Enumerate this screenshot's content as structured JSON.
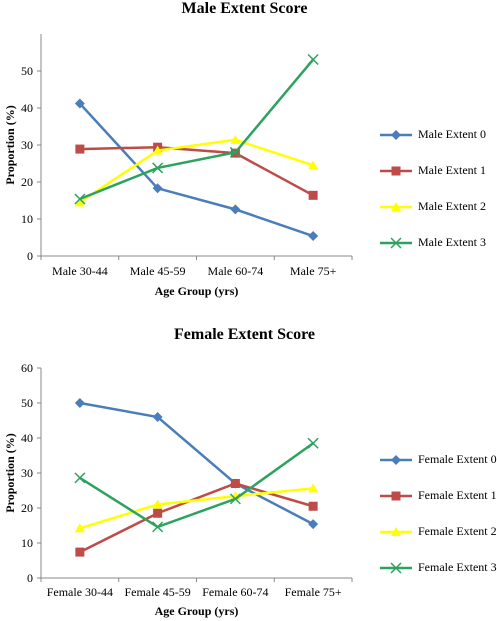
{
  "chart_data": [
    {
      "type": "line",
      "title": "Male Extent Score",
      "xlabel": "Age Group (yrs)",
      "ylabel": "Proportion (%)",
      "categories": [
        "Male 30-44",
        "Male 45-59",
        "Male 60-74",
        "Male 75+"
      ],
      "ylim": [
        0,
        60
      ],
      "yticks": [
        0,
        10,
        20,
        30,
        40,
        50
      ],
      "grid": false,
      "legend": "right",
      "series": [
        {
          "name": "Male Extent 0",
          "values": [
            41.2,
            18.3,
            12.6,
            5.4
          ],
          "color": "#4a7ebb",
          "marker": "diamond"
        },
        {
          "name": "Male Extent 1",
          "values": [
            28.9,
            29.4,
            27.8,
            16.4
          ],
          "color": "#be4b48",
          "marker": "square"
        },
        {
          "name": "Male Extent 2",
          "values": [
            14.5,
            28.5,
            31.4,
            24.5
          ],
          "color": "#ffff00",
          "marker": "triangle"
        },
        {
          "name": "Male Extent 3",
          "values": [
            15.4,
            23.8,
            28.0,
            53.1
          ],
          "color": "#2ca25f",
          "marker": "x"
        }
      ]
    },
    {
      "type": "line",
      "title": "Female Extent Score",
      "xlabel": "Age Group (yrs)",
      "ylabel": "Proportion (%)",
      "categories": [
        "Female 30-44",
        "Female 45-59",
        "Female 60-74",
        "Female 75+"
      ],
      "ylim": [
        0,
        60
      ],
      "yticks": [
        0,
        10,
        20,
        30,
        40,
        50,
        60
      ],
      "grid": false,
      "legend": "right",
      "series": [
        {
          "name": "Female Extent 0",
          "values": [
            50.0,
            46.0,
            27.0,
            15.4
          ],
          "color": "#4a7ebb",
          "marker": "diamond"
        },
        {
          "name": "Female Extent 1",
          "values": [
            7.4,
            18.5,
            27.0,
            20.5
          ],
          "color": "#be4b48",
          "marker": "square"
        },
        {
          "name": "Female Extent 2",
          "values": [
            14.2,
            21.0,
            23.4,
            25.6
          ],
          "color": "#ffff00",
          "marker": "triangle"
        },
        {
          "name": "Female Extent 3",
          "values": [
            28.6,
            14.6,
            22.6,
            38.5
          ],
          "color": "#2ca25f",
          "marker": "x"
        }
      ]
    }
  ]
}
